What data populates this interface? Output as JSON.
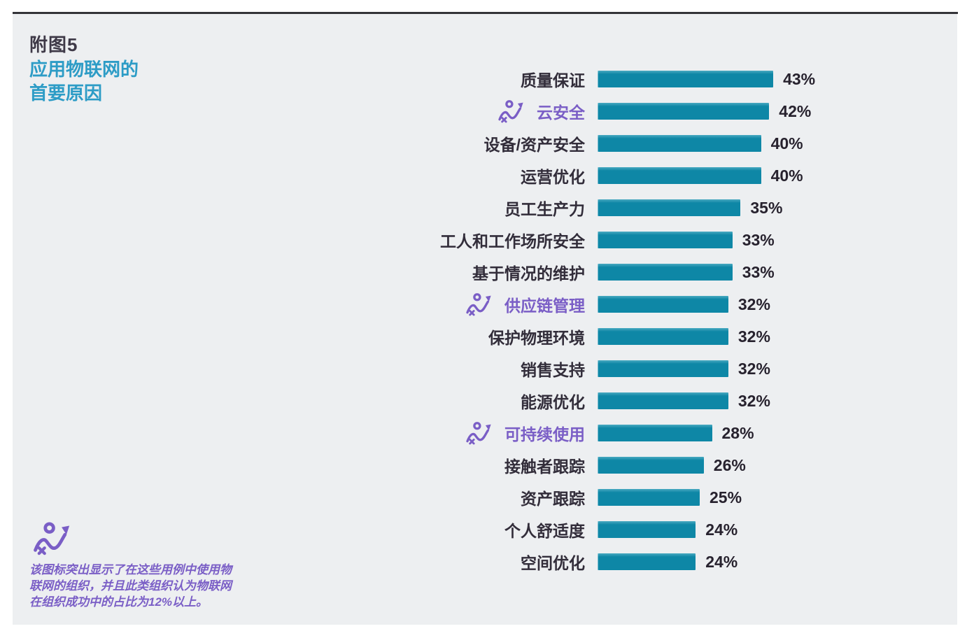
{
  "header": {
    "figure_label": "附图5",
    "title_line1": "应用物联网的",
    "title_line2": "首要原因"
  },
  "chart_data": {
    "type": "bar",
    "orientation": "horizontal",
    "title": "应用物联网的首要原因",
    "unit": "%",
    "xlim": [
      0,
      45
    ],
    "grid": false,
    "legend_position": "none",
    "rows": [
      {
        "label": "质量保证",
        "value": 43,
        "pct": "43%",
        "highlighted": false
      },
      {
        "label": "云安全",
        "value": 42,
        "pct": "42%",
        "highlighted": true
      },
      {
        "label": "设备/资产安全",
        "value": 40,
        "pct": "40%",
        "highlighted": false
      },
      {
        "label": "运营优化",
        "value": 40,
        "pct": "40%",
        "highlighted": false
      },
      {
        "label": "员工生产力",
        "value": 35,
        "pct": "35%",
        "highlighted": false
      },
      {
        "label": "工人和工作场所安全",
        "value": 33,
        "pct": "33%",
        "highlighted": false
      },
      {
        "label": "基于情况的维护",
        "value": 33,
        "pct": "33%",
        "highlighted": false
      },
      {
        "label": "供应链管理",
        "value": 32,
        "pct": "32%",
        "highlighted": true
      },
      {
        "label": "保护物理环境",
        "value": 32,
        "pct": "32%",
        "highlighted": false
      },
      {
        "label": "销售支持",
        "value": 32,
        "pct": "32%",
        "highlighted": false
      },
      {
        "label": "能源优化",
        "value": 32,
        "pct": "32%",
        "highlighted": false
      },
      {
        "label": "可持续使用",
        "value": 28,
        "pct": "28%",
        "highlighted": true
      },
      {
        "label": "接触者跟踪",
        "value": 26,
        "pct": "26%",
        "highlighted": false
      },
      {
        "label": "资产跟踪",
        "value": 25,
        "pct": "25%",
        "highlighted": false
      },
      {
        "label": "个人舒适度",
        "value": 24,
        "pct": "24%",
        "highlighted": false
      },
      {
        "label": "空间优化",
        "value": 24,
        "pct": "24%",
        "highlighted": false
      }
    ]
  },
  "footnote": {
    "lines": [
      "该图标突出显示了在这些用例中使用物",
      "联网的组织，并且此类组织认为物联网",
      "在组织成功中的占比为12%以上。"
    ]
  },
  "icons": {
    "trend_icon": "trend-arrow-with-x-and-dot"
  },
  "colors": {
    "bar": "#0e87a6",
    "bar_top": "#49a9c1",
    "highlight": "#7a5ec6",
    "title_teal": "#2d9cc6",
    "text_dark": "#322d3a",
    "value_dark": "#27222e",
    "card_bg": "#edeff1",
    "top_rule": "#333338"
  }
}
